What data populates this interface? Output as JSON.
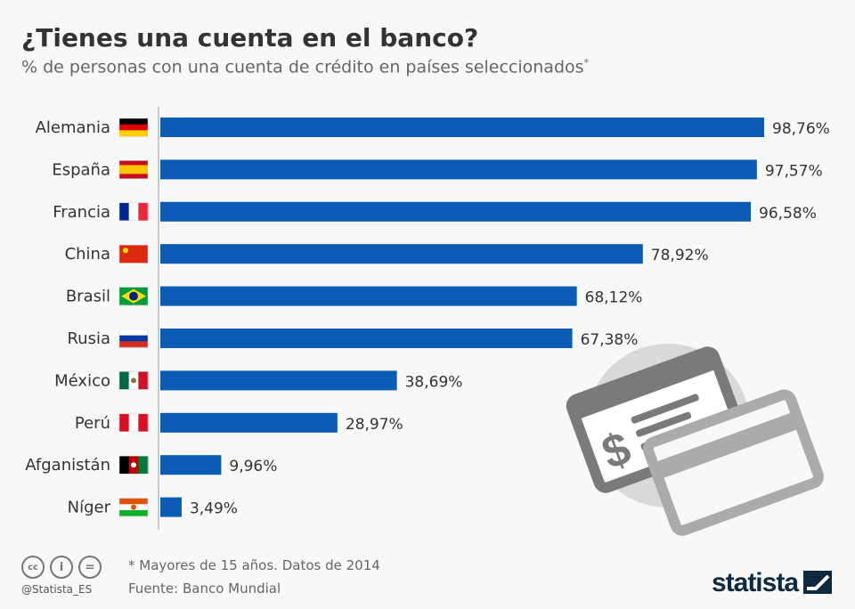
{
  "title": "¿Tienes una cuenta en el banco?",
  "subtitle": "% de personas con una cuenta de crédito en países seleccionados",
  "subtitle_mark": "*",
  "chart_data": {
    "type": "bar",
    "orientation": "horizontal",
    "categories": [
      "Alemania",
      "España",
      "Francia",
      "China",
      "Brasil",
      "Rusia",
      "México",
      "Perú",
      "Afganistán",
      "Níger"
    ],
    "values": [
      98.76,
      97.57,
      96.58,
      78.92,
      68.12,
      67.38,
      38.69,
      28.97,
      9.96,
      3.49
    ],
    "data_labels": [
      "98,76%",
      "97,57%",
      "96,58%",
      "78,92%",
      "68,12%",
      "67,38%",
      "38,69%",
      "28,97%",
      "9,96%",
      "3,49%"
    ],
    "xlim": [
      0,
      100
    ],
    "bar_color": "#0a5cb4",
    "grid": false
  },
  "flags": [
    "germany-flag-icon",
    "spain-flag-icon",
    "france-flag-icon",
    "china-flag-icon",
    "brazil-flag-icon",
    "russia-flag-icon",
    "mexico-flag-icon",
    "peru-flag-icon",
    "afghanistan-flag-icon",
    "niger-flag-icon"
  ],
  "footer": {
    "note": "* Mayores de 15 años. Datos de 2014",
    "source": "Fuente: Banco Mundial",
    "handle": "@Statista_ES",
    "logo": "statista",
    "license_icons": [
      "cc-icon",
      "attribution-icon",
      "no-derivatives-icon"
    ]
  }
}
